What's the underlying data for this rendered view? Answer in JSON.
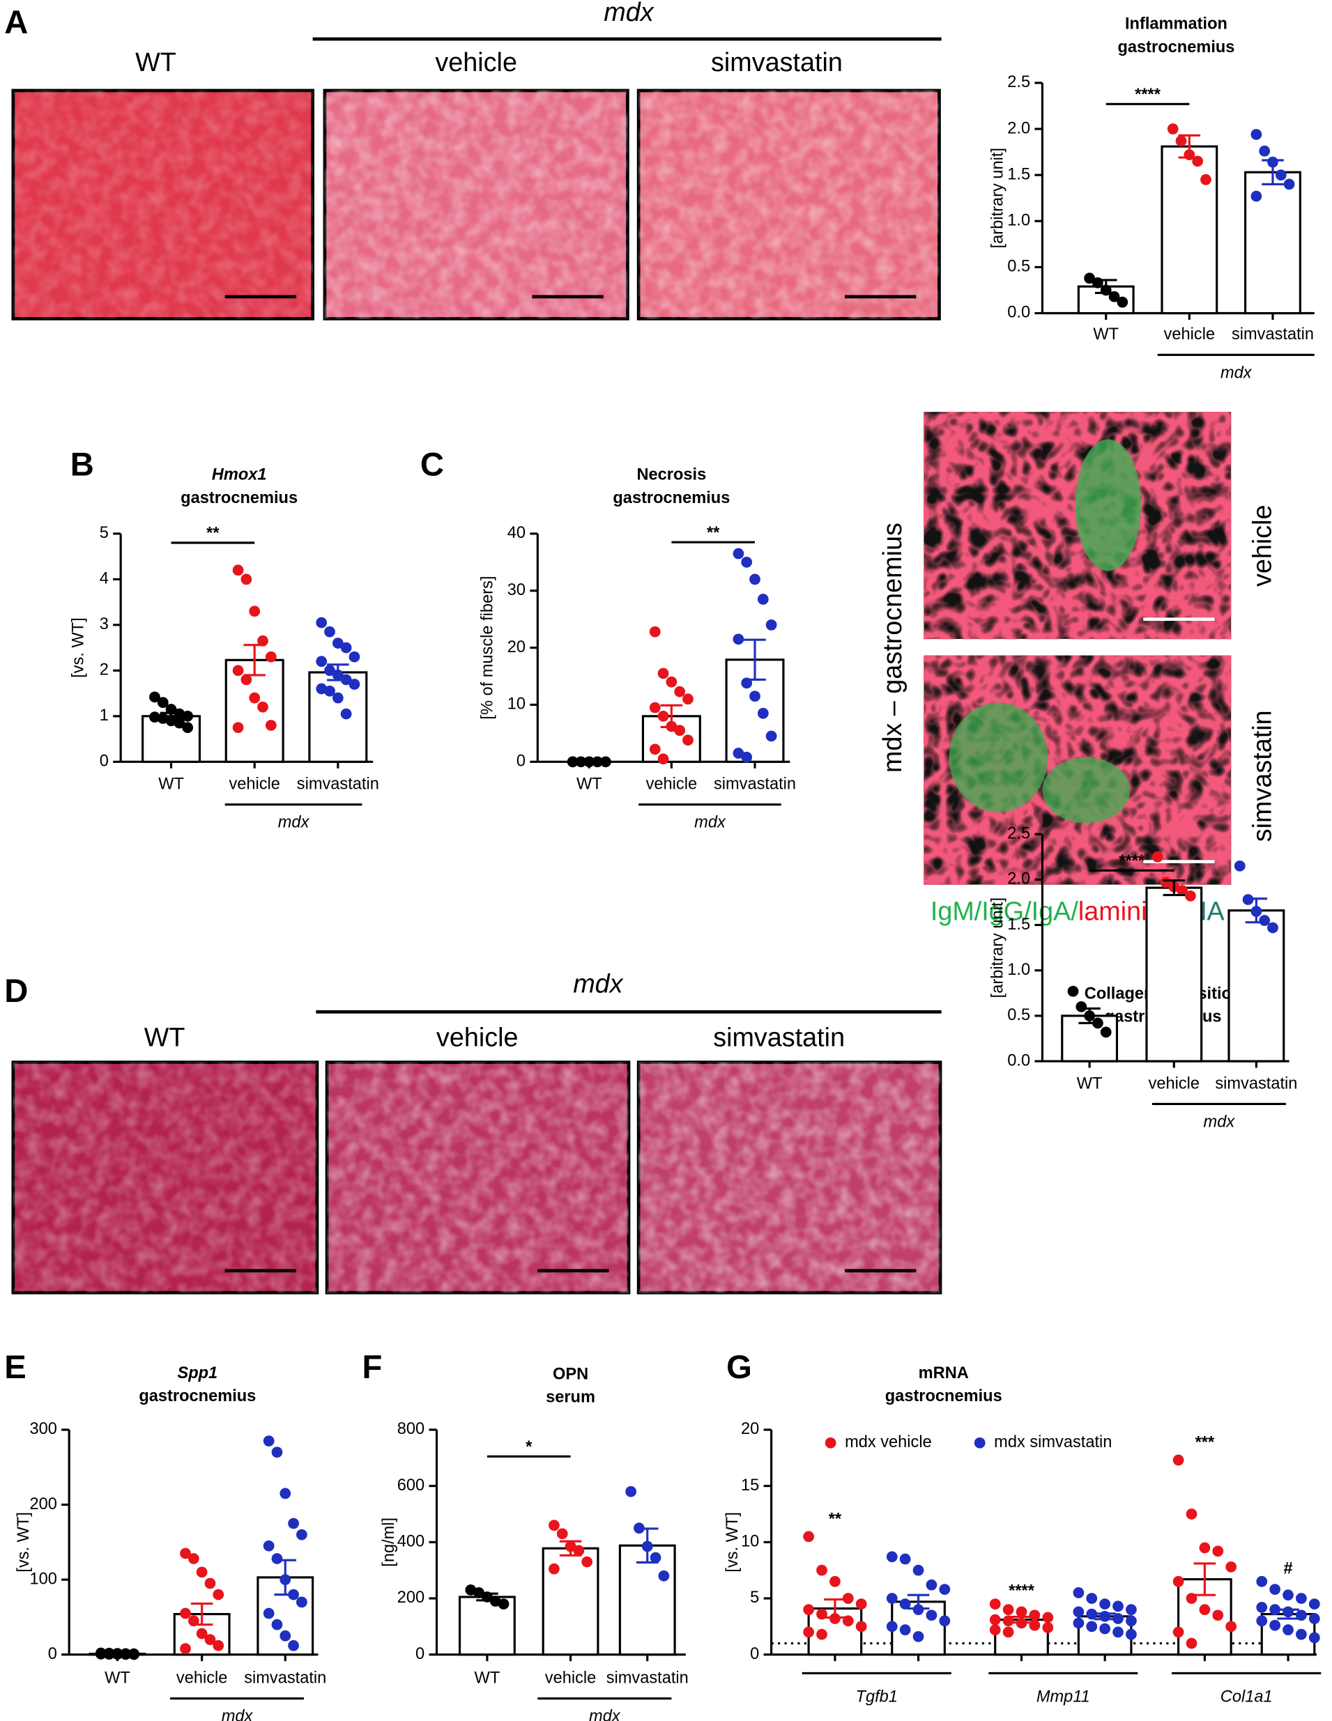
{
  "figure": {
    "panel_labels": [
      "A",
      "B",
      "C",
      "D",
      "E",
      "F",
      "G"
    ],
    "image_panels": {
      "A": {
        "group": "mdx",
        "labels": [
          "WT",
          "vehicle",
          "simvastatin"
        ]
      },
      "C": {
        "side": "mdx – gastrocnemius",
        "labels": [
          "vehicle",
          "simvastatin"
        ],
        "legend": [
          "IgM/IgG/IgA/",
          "laminin/",
          "DNA"
        ],
        "legend_colors": [
          "#22b14c",
          "#e8141c",
          "#1a7a6a"
        ]
      },
      "D": {
        "group": "mdx",
        "labels": [
          "WT",
          "vehicle",
          "simvastatin"
        ]
      }
    }
  },
  "chart_data": [
    {
      "type": "bar",
      "title": "Inflammation",
      "subtitle": "gastrocnemius",
      "ylabel": "[arbitrary unit]",
      "categories": [
        "WT",
        "vehicle",
        "simvastatin"
      ],
      "group_label": "mdx",
      "colors": [
        "#000000",
        "#e8141c",
        "#1f2fbf"
      ],
      "values": [
        0.29,
        1.81,
        1.53
      ],
      "errors": [
        0.07,
        0.12,
        0.13
      ],
      "points": [
        [
          0.38,
          0.33,
          0.25,
          0.18,
          0.12
        ],
        [
          2.0,
          1.87,
          1.72,
          1.65,
          1.45
        ],
        [
          1.94,
          1.76,
          1.64,
          1.5,
          1.4,
          1.27
        ]
      ],
      "annotations": [
        {
          "text": "****",
          "from": 0,
          "to": 1,
          "y": 2.27
        }
      ],
      "ylim": [
        0,
        2.5
      ],
      "yticks": [
        {
          "value": 0,
          "label": "0.0"
        },
        0.5,
        {
          "value": 1,
          "label": "1.0"
        },
        1.5,
        {
          "value": 2,
          "label": "2.0"
        },
        2.5
      ]
    },
    {
      "type": "bar",
      "title": "Hmox1",
      "title_italic": true,
      "subtitle": "gastrocnemius",
      "ylabel": "[vs. WT]",
      "categories": [
        "WT",
        "vehicle",
        "simvastatin"
      ],
      "group_label": "mdx",
      "colors": [
        "#000000",
        "#e8141c",
        "#1f2fbf"
      ],
      "values": [
        1.0,
        2.23,
        1.96
      ],
      "errors": [
        0.07,
        0.33,
        0.17
      ],
      "points": [
        [
          1.42,
          1.3,
          1.15,
          1.05,
          1.0,
          0.98,
          0.95,
          0.9,
          0.85,
          0.75
        ],
        [
          4.2,
          4.0,
          3.3,
          2.65,
          2.3,
          2.0,
          1.8,
          1.4,
          1.2,
          0.8,
          0.75
        ],
        [
          3.05,
          2.85,
          2.6,
          2.5,
          2.3,
          2.2,
          2.0,
          1.9,
          1.8,
          1.7,
          1.6,
          1.55,
          1.4,
          1.05
        ]
      ],
      "annotations": [
        {
          "text": "**",
          "from": 0,
          "to": 1,
          "y": 4.8
        }
      ],
      "ylim": [
        0,
        5
      ],
      "yticks": [
        0,
        1,
        2,
        3,
        4,
        5
      ]
    },
    {
      "type": "bar",
      "title": "Necrosis",
      "subtitle": "gastrocnemius",
      "ylabel": "[% of muscle fibers]",
      "categories": [
        "WT",
        "vehicle",
        "simvastatin"
      ],
      "group_label": "mdx",
      "colors": [
        "#000000",
        "#e8141c",
        "#1f2fbf"
      ],
      "values": [
        0,
        8.0,
        17.9
      ],
      "errors": [
        0,
        1.9,
        3.5
      ],
      "points": [
        [
          0,
          0,
          0,
          0,
          0,
          0
        ],
        [
          22.8,
          15.5,
          14.0,
          12.3,
          11.0,
          9.5,
          8.0,
          6.2,
          5.5,
          3.8,
          2.2,
          0.5
        ],
        [
          36.5,
          35.0,
          32.0,
          28.5,
          24.0,
          21.5,
          13.8,
          11.5,
          8.5,
          4.5,
          1.5,
          0.8
        ]
      ],
      "annotations": [
        {
          "text": "**",
          "from": 1,
          "to": 2,
          "y": 38.5
        }
      ],
      "ylim": [
        0,
        40
      ],
      "yticks": [
        0,
        10,
        20,
        30,
        40
      ]
    },
    {
      "type": "bar",
      "title": "Collagen deposition",
      "subtitle": "gastrocnemius",
      "ylabel": "[arbitrary unit]",
      "categories": [
        "WT",
        "vehicle",
        "simvastatin"
      ],
      "group_label": "mdx",
      "colors": [
        "#000000",
        "#000000",
        "#1f2fbf"
      ],
      "values": [
        0.5,
        1.91,
        1.66
      ],
      "errors": [
        0.08,
        0.08,
        0.13
      ],
      "points": [
        [
          0.77,
          0.6,
          0.5,
          0.42,
          0.32
        ],
        [
          2.25,
          1.97,
          1.92,
          1.88,
          1.82
        ],
        [
          2.15,
          1.78,
          1.65,
          1.55,
          1.47
        ]
      ],
      "point_colors": [
        "#000000",
        "#e8141c",
        "#1f2fbf"
      ],
      "annotations": [
        {
          "text": "****",
          "from": 0,
          "to": 1,
          "y": 2.1
        }
      ],
      "ylim": [
        0,
        2.5
      ],
      "yticks": [
        {
          "value": 0,
          "label": "0.0"
        },
        0.5,
        {
          "value": 1,
          "label": "1.0"
        },
        1.5,
        {
          "value": 2,
          "label": "2.0"
        },
        2.5
      ]
    },
    {
      "type": "bar",
      "title": "Spp1",
      "title_italic": true,
      "subtitle": "gastrocnemius",
      "ylabel": "[vs. WT]",
      "categories": [
        "WT",
        "vehicle",
        "simvastatin"
      ],
      "group_label": "mdx",
      "colors": [
        "#000000",
        "#e8141c",
        "#1f2fbf"
      ],
      "values": [
        1,
        54,
        103
      ],
      "errors": [
        0.3,
        14,
        23
      ],
      "points": [
        [
          2,
          1.8,
          1.5,
          1.2,
          1,
          0.8,
          0.6,
          0.5,
          0.3,
          0.2
        ],
        [
          135,
          128,
          110,
          95,
          80,
          55,
          45,
          28,
          20,
          12,
          8
        ],
        [
          285,
          270,
          215,
          175,
          160,
          145,
          128,
          100,
          80,
          70,
          55,
          40,
          25,
          12
        ]
      ],
      "annotations": [],
      "ylim": [
        0,
        300
      ],
      "yticks": [
        0,
        100,
        200,
        300
      ]
    },
    {
      "type": "bar",
      "title": "OPN",
      "subtitle": "serum",
      "ylabel": "[ng/ml]",
      "categories": [
        "WT",
        "vehicle",
        "simvastatin"
      ],
      "group_label": "mdx",
      "colors": [
        "#000000",
        "#e8141c",
        "#1f2fbf"
      ],
      "values": [
        205,
        378,
        388
      ],
      "errors": [
        12,
        25,
        60
      ],
      "points": [
        [
          230,
          220,
          205,
          190,
          180
        ],
        [
          460,
          430,
          385,
          370,
          330,
          305
        ],
        [
          580,
          450,
          385,
          345,
          280
        ]
      ],
      "annotations": [
        {
          "text": "*",
          "from": 0,
          "to": 1,
          "y": 705
        }
      ],
      "ylim": [
        0,
        800
      ],
      "yticks": [
        0,
        200,
        400,
        600,
        800
      ]
    },
    {
      "type": "grouped_bar",
      "title": "mRNA",
      "subtitle": "gastrocnemius",
      "ylabel": "[vs. WT]",
      "categories": [
        "Tgfb1",
        "Mmp11",
        "Col1a1"
      ],
      "reference_line": 1,
      "series": [
        {
          "name": "mdx vehicle",
          "color": "#e8141c",
          "values": [
            4.1,
            3.1,
            6.7
          ],
          "errors": [
            0.8,
            0.25,
            1.4
          ],
          "points": [
            [
              10.5,
              7.5,
              6.5,
              5.0,
              4.5,
              4.0,
              3.6,
              3.2,
              3.0,
              2.5,
              2.0,
              1.8
            ],
            [
              4.5,
              4.0,
              3.8,
              3.5,
              3.3,
              3.1,
              3.0,
              2.8,
              2.6,
              2.4,
              2.2,
              2.0
            ],
            [
              17.3,
              12.5,
              9.5,
              9.2,
              7.8,
              6.5,
              5.0,
              4.0,
              3.5,
              2.5,
              2.0,
              1.0
            ]
          ]
        },
        {
          "name": "mdx simvastatin",
          "color": "#1f2fbf",
          "values": [
            4.7,
            3.4,
            3.6
          ],
          "errors": [
            0.6,
            0.25,
            0.4
          ],
          "points": [
            [
              8.7,
              8.5,
              7.5,
              6.2,
              5.8,
              5.0,
              4.5,
              4.0,
              3.5,
              3.0,
              2.5,
              2.2,
              1.6
            ],
            [
              5.5,
              5.0,
              4.5,
              4.3,
              4.0,
              3.8,
              3.6,
              3.4,
              3.2,
              3.0,
              2.8,
              2.5,
              2.3,
              2.0,
              1.8
            ],
            [
              6.5,
              5.8,
              5.3,
              5.0,
              4.5,
              4.2,
              4.0,
              3.8,
              3.5,
              3.2,
              3.0,
              2.6,
              2.2,
              1.8,
              1.5
            ]
          ]
        }
      ],
      "annotations": [
        {
          "text": "**",
          "category": 0,
          "series": 0,
          "y": 12
        },
        {
          "text": "****",
          "category": 1,
          "series": 0,
          "y": 5.6
        },
        {
          "text": "***",
          "category": 2,
          "series": 0,
          "y": 18.8
        },
        {
          "text": "#",
          "category": 2,
          "series": 1,
          "y": 7.6
        }
      ],
      "ylim": [
        0,
        20
      ],
      "yticks": [
        0,
        5,
        10,
        15,
        20
      ]
    }
  ]
}
